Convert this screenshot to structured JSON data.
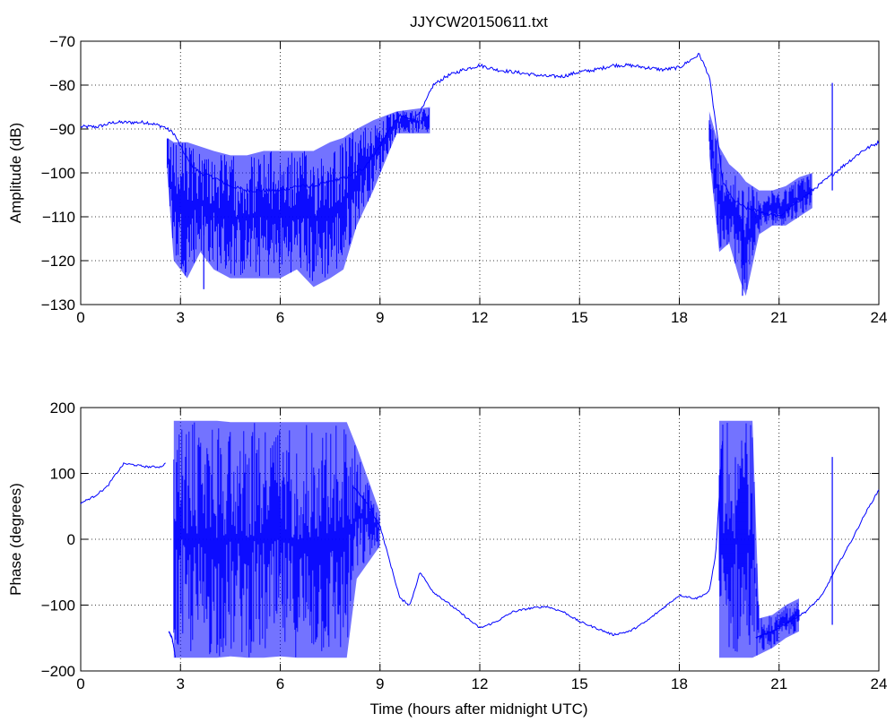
{
  "figure": {
    "title": "JJYCW20150611.txt"
  },
  "chart_data": [
    {
      "type": "line",
      "title": "JJYCW20150611.txt",
      "xlabel": "",
      "ylabel": "Amplitude (dB)",
      "xlim": [
        0,
        24
      ],
      "ylim": [
        -130,
        -70
      ],
      "xticks": [
        0,
        3,
        6,
        9,
        12,
        15,
        18,
        21,
        24
      ],
      "yticks": [
        -130,
        -120,
        -110,
        -100,
        -90,
        -80,
        -70
      ],
      "grid": true,
      "line_color": "#0000ff",
      "series": [
        {
          "x": [
            0,
            0.5,
            1,
            1.5,
            2,
            2.5,
            2.8,
            3,
            3.3,
            3.6,
            4,
            4.5,
            5,
            5.5,
            6,
            6.5,
            7,
            7.5,
            8,
            8.5,
            9,
            9.3,
            9.6,
            10,
            10.3,
            10.6,
            11,
            11.5,
            12,
            12.5,
            13,
            13.5,
            14,
            14.5,
            15,
            15.5,
            16,
            16.5,
            17,
            17.5,
            18,
            18.3,
            18.6,
            18.9,
            19.1,
            19.3,
            19.6,
            20,
            20.5,
            21,
            21.5,
            22,
            22.5,
            23,
            23.5,
            24
          ],
          "y": [
            -89.5,
            -89.5,
            -88.5,
            -88.5,
            -88.5,
            -89.5,
            -91,
            -94,
            -98,
            -100,
            -101,
            -103,
            -104,
            -104,
            -104,
            -103,
            -103,
            -102,
            -101,
            -99,
            -94,
            -90,
            -87,
            -88,
            -85,
            -80,
            -78,
            -76.5,
            -75.5,
            -76.5,
            -77,
            -77.5,
            -78,
            -78,
            -77,
            -76.5,
            -75.5,
            -75.5,
            -76,
            -76.5,
            -76,
            -74.5,
            -73,
            -78,
            -89,
            -102,
            -106,
            -108,
            -109,
            -110,
            -107,
            -104,
            -101,
            -98,
            -95,
            -93
          ]
        },
        {
          "x": [
            2.6,
            2.8,
            3.2,
            3.6,
            4,
            4.5,
            5,
            5.5,
            6,
            6.5,
            7,
            7.5,
            7.9,
            8.3,
            8.8,
            9.5,
            10.5
          ],
          "y_low": [
            -100,
            -120,
            -124,
            -118,
            -122,
            -124,
            -124,
            -124,
            -124,
            -122,
            -126,
            -124,
            -122,
            -112,
            -104,
            -91,
            -91
          ],
          "y_high": [
            -92,
            -93,
            -93,
            -94,
            -95,
            -96,
            -96,
            -95,
            -95,
            -95,
            -95,
            -93,
            -92,
            -90,
            -88,
            -86,
            -85
          ],
          "band_label": ""
        },
        {
          "x": [
            18.9,
            19.2,
            19.5,
            19.8,
            20,
            20.4,
            20.8,
            21.2,
            21.6,
            22
          ],
          "y_low": [
            -96,
            -118,
            -116,
            -124,
            -128,
            -114,
            -112,
            -112,
            -110,
            -108
          ],
          "y_high": [
            -86,
            -94,
            -98,
            -100,
            -102,
            -104,
            -104,
            -103,
            -101,
            -100
          ],
          "band_label": ""
        }
      ],
      "annotations": [
        {
          "type": "spike",
          "x": 22.6,
          "y_from": -104,
          "y_to": -79.5
        },
        {
          "type": "spike",
          "x": 3.7,
          "y_from": -110,
          "y_to": -126.5
        },
        {
          "type": "spike",
          "x": 19.9,
          "y_from": -104,
          "y_to": -128
        }
      ]
    },
    {
      "type": "line",
      "title": "",
      "xlabel": "Time (hours after midnight UTC)",
      "ylabel": "Phase (degrees)",
      "xlim": [
        0,
        24
      ],
      "ylim": [
        -200,
        200
      ],
      "xticks": [
        0,
        3,
        6,
        9,
        12,
        15,
        18,
        21,
        24
      ],
      "yticks": [
        -200,
        -100,
        0,
        100,
        200
      ],
      "grid": true,
      "line_color": "#0000ff",
      "series": [
        {
          "x": [
            0,
            0.4,
            0.8,
            1.0,
            1.3,
            1.6,
            2.0,
            2.4,
            2.55
          ],
          "y": [
            55,
            65,
            80,
            95,
            115,
            113,
            110,
            110,
            115
          ]
        },
        {
          "x": [
            2.65,
            2.75,
            2.85
          ],
          "y": [
            -140,
            -150,
            -180
          ]
        },
        {
          "x": [
            8.2,
            8.6,
            9.0,
            9.3,
            9.6,
            9.9,
            10.2,
            10.6,
            11,
            11.5,
            12,
            12.5,
            13,
            13.5,
            14,
            14.5,
            15,
            15.5,
            16,
            16.5,
            17,
            17.5,
            18,
            18.5,
            18.9,
            19.1,
            19.3
          ],
          "y": [
            80,
            55,
            20,
            -35,
            -90,
            -100,
            -50,
            -80,
            -95,
            -115,
            -135,
            -125,
            -110,
            -105,
            -102,
            -110,
            -125,
            -135,
            -145,
            -140,
            -125,
            -105,
            -85,
            -90,
            -80,
            -20,
            150
          ]
        },
        {
          "x": [
            20.3,
            20.8,
            21.3,
            21.8,
            22.3,
            22.7,
            23.2,
            23.6,
            24
          ],
          "y": [
            -150,
            -140,
            -125,
            -110,
            -85,
            -45,
            0,
            40,
            75
          ]
        },
        {
          "x": [
            2.8,
            3.0,
            3.3,
            3.7,
            4.1,
            4.5,
            5,
            5.5,
            6,
            6.5,
            7,
            7.5,
            8,
            8.3,
            9
          ],
          "y_low": [
            -180,
            -180,
            -180,
            -180,
            -180,
            -178,
            -180,
            -180,
            -178,
            -180,
            -180,
            -180,
            -180,
            -60,
            -10
          ],
          "y_high": [
            180,
            180,
            180,
            180,
            180,
            178,
            178,
            178,
            178,
            178,
            178,
            178,
            178,
            140,
            40
          ],
          "band_label": ""
        },
        {
          "x": [
            19.2,
            19.4,
            19.6,
            19.8,
            20.0,
            20.2,
            20.4,
            20.8,
            21.2,
            21.6
          ],
          "y_low": [
            -180,
            -180,
            -180,
            -180,
            -180,
            -180,
            -175,
            -165,
            -150,
            -140
          ],
          "y_high": [
            180,
            180,
            180,
            180,
            180,
            180,
            -120,
            -115,
            -100,
            -90
          ],
          "band_label": ""
        }
      ],
      "annotations": [
        {
          "type": "spike",
          "x": 22.6,
          "y_from": -130,
          "y_to": 125
        }
      ]
    }
  ]
}
